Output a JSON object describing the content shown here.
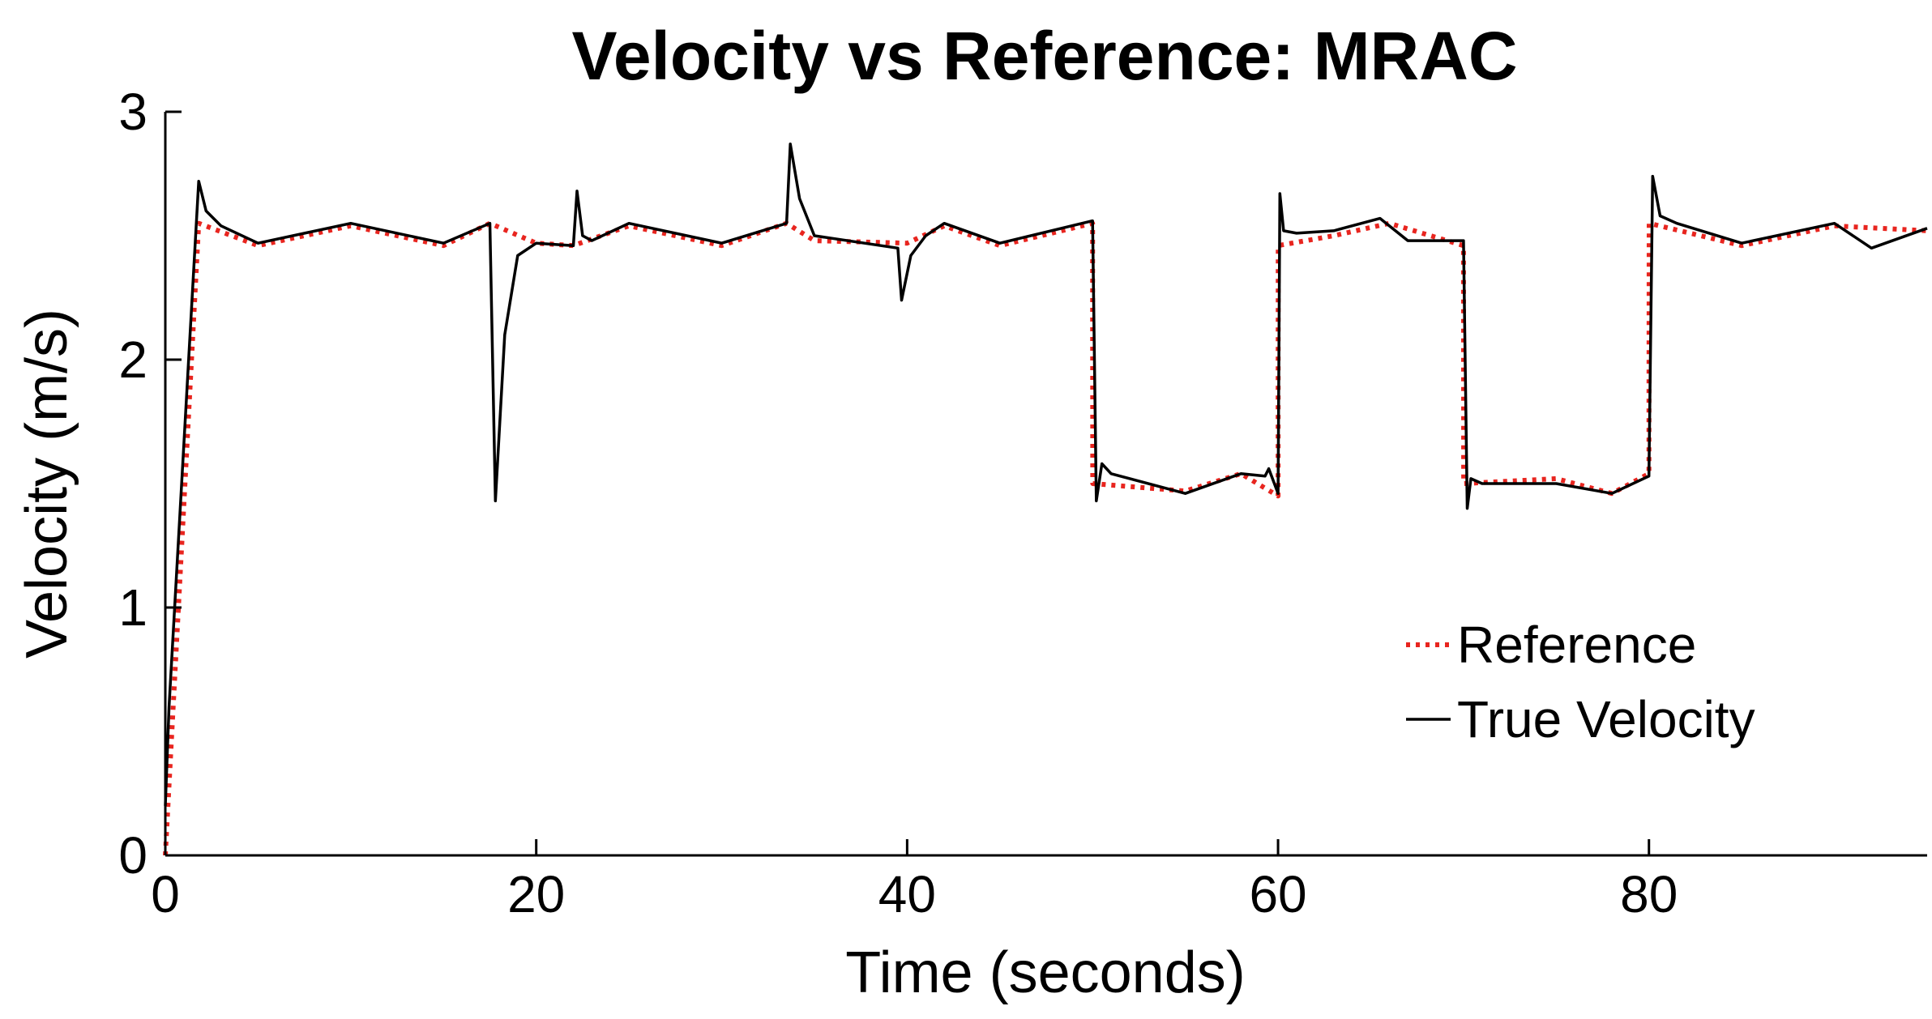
{
  "chart_data": {
    "type": "line",
    "title": "Velocity vs Reference: MRAC",
    "xlabel": "Time (seconds)",
    "ylabel": "Velocity (m/s)",
    "xlim": [
      0,
      95
    ],
    "ylim": [
      0,
      3
    ],
    "xticks": [
      0,
      20,
      40,
      60,
      80
    ],
    "xtick_labels": [
      "0",
      "20",
      "40",
      "60",
      "80"
    ],
    "yticks": [
      0,
      1,
      2,
      3
    ],
    "ytick_labels": [
      "0",
      "1",
      "2",
      "3"
    ],
    "grid": false,
    "legend_position": "right",
    "series": [
      {
        "name": "Reference",
        "style": "dotted",
        "color": "#e8251f",
        "x": [
          0,
          1.8,
          5,
          10,
          15,
          17.5,
          20,
          22,
          25,
          30,
          33.5,
          35,
          40,
          42,
          45,
          50,
          50.01,
          55,
          58,
          60,
          60.01,
          63,
          66,
          70,
          70.01,
          75,
          78,
          80,
          80.01,
          85,
          90,
          95
        ],
        "y": [
          0,
          2.55,
          2.46,
          2.54,
          2.46,
          2.55,
          2.47,
          2.46,
          2.54,
          2.46,
          2.55,
          2.48,
          2.47,
          2.54,
          2.46,
          2.55,
          1.5,
          1.47,
          1.54,
          1.45,
          2.46,
          2.5,
          2.55,
          2.46,
          1.5,
          1.52,
          1.46,
          1.54,
          2.55,
          2.46,
          2.54,
          2.52
        ]
      },
      {
        "name": "True Velocity",
        "style": "solid",
        "color": "#000000",
        "x": [
          0,
          0.2,
          1.8,
          2.2,
          3,
          5,
          10,
          15,
          17.5,
          17.8,
          18.3,
          19,
          20,
          22,
          22.2,
          22.5,
          23,
          25,
          30,
          33.5,
          33.7,
          34.2,
          35,
          39.5,
          39.7,
          40.2,
          41,
          42,
          45,
          50,
          50.2,
          50.5,
          51,
          55,
          58,
          59.3,
          59.5,
          60,
          60.1,
          60.3,
          61,
          63,
          65.5,
          67,
          70,
          70.2,
          70.4,
          71,
          75,
          78,
          80,
          80.2,
          80.6,
          81.5,
          85,
          90,
          92,
          95
        ],
        "y": [
          0.2,
          0.6,
          2.72,
          2.6,
          2.54,
          2.47,
          2.55,
          2.47,
          2.55,
          1.43,
          2.1,
          2.42,
          2.47,
          2.46,
          2.68,
          2.5,
          2.48,
          2.55,
          2.47,
          2.55,
          2.87,
          2.65,
          2.5,
          2.45,
          2.24,
          2.42,
          2.5,
          2.55,
          2.47,
          2.56,
          1.43,
          1.58,
          1.54,
          1.46,
          1.54,
          1.53,
          1.56,
          1.46,
          2.67,
          2.52,
          2.51,
          2.52,
          2.57,
          2.48,
          2.48,
          1.4,
          1.52,
          1.5,
          1.5,
          1.46,
          1.53,
          2.74,
          2.58,
          2.55,
          2.47,
          2.55,
          2.45,
          2.53
        ]
      }
    ]
  }
}
